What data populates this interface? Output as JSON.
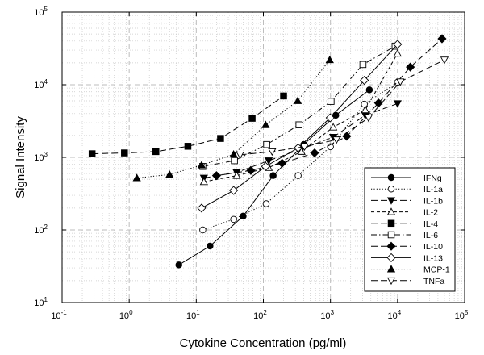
{
  "chart_data": {
    "type": "line",
    "xscale": "log",
    "yscale": "log",
    "xlim": [
      0.1,
      100000
    ],
    "ylim": [
      10,
      100000
    ],
    "xlabel": "Cytokine Concentration (pg/ml)",
    "ylabel": "Signal Intensity",
    "grid": "major dashed, minor dotted",
    "legend_position": "bottom-right",
    "xticks": [
      {
        "value": 0.1,
        "base": "10",
        "exp": "-1"
      },
      {
        "value": 1,
        "base": "10",
        "exp": "0"
      },
      {
        "value": 10,
        "base": "10",
        "exp": "1"
      },
      {
        "value": 100,
        "base": "10",
        "exp": "2"
      },
      {
        "value": 1000,
        "base": "10",
        "exp": "3"
      },
      {
        "value": 10000,
        "base": "10",
        "exp": "4"
      },
      {
        "value": 100000,
        "base": "10",
        "exp": "5"
      }
    ],
    "yticks": [
      {
        "value": 10,
        "base": "10",
        "exp": "1"
      },
      {
        "value": 100,
        "base": "10",
        "exp": "2"
      },
      {
        "value": 1000,
        "base": "10",
        "exp": "3"
      },
      {
        "value": 10000,
        "base": "10",
        "exp": "4"
      },
      {
        "value": 100000,
        "base": "10",
        "exp": "5"
      }
    ],
    "series": [
      {
        "name": "IFNg",
        "marker": "circle-filled",
        "dash": "solid",
        "x": [
          5.5,
          16,
          50,
          140,
          400,
          1200,
          3800
        ],
        "y": [
          33,
          60,
          155,
          560,
          1500,
          3800,
          8500
        ]
      },
      {
        "name": "IL-1a",
        "marker": "circle-open",
        "dash": "dotted",
        "x": [
          12.5,
          36,
          110,
          330,
          1000,
          3200,
          10000
        ],
        "y": [
          100,
          140,
          230,
          560,
          1400,
          5400,
          10800
        ]
      },
      {
        "name": "IL-1b",
        "marker": "tri-down-filled",
        "dash": "longdash",
        "x": [
          13,
          40,
          120,
          370,
          1100,
          3300,
          10000
        ],
        "y": [
          520,
          620,
          900,
          1300,
          1900,
          3800,
          5500
        ]
      },
      {
        "name": "IL-2",
        "marker": "tri-up-open",
        "dash": "dashed",
        "x": [
          13,
          40,
          120,
          370,
          1100,
          3300,
          10000
        ],
        "y": [
          460,
          560,
          720,
          1200,
          2600,
          4500,
          27000
        ]
      },
      {
        "name": "IL-4",
        "marker": "square-filled",
        "dash": "longdash",
        "x": [
          0.28,
          0.85,
          2.5,
          7.5,
          23,
          68,
          200
        ],
        "y": [
          1120,
          1150,
          1200,
          1420,
          1820,
          3450,
          7000
        ]
      },
      {
        "name": "IL-6",
        "marker": "square-open",
        "dash": "dashdot",
        "x": [
          12.5,
          37,
          112,
          340,
          1020,
          3050,
          9200
        ],
        "y": [
          750,
          900,
          1500,
          2800,
          5900,
          19000,
          34000
        ]
      },
      {
        "name": "IL-10",
        "marker": "diamond-filled",
        "dash": "longdash",
        "x": [
          20,
          65,
          190,
          580,
          1750,
          5200,
          15500,
          46000
        ],
        "y": [
          560,
          660,
          830,
          1150,
          1950,
          5600,
          17500,
          43000
        ]
      },
      {
        "name": "IL-13",
        "marker": "diamond-open",
        "dash": "solid",
        "x": [
          12,
          36,
          108,
          330,
          990,
          3200,
          10000
        ],
        "y": [
          200,
          350,
          750,
          1350,
          3500,
          11500,
          36000
        ]
      },
      {
        "name": "MCP-1",
        "marker": "tri-up-filled",
        "dash": "dotted",
        "x": [
          1.3,
          4.0,
          12,
          36,
          108,
          325,
          975
        ],
        "y": [
          520,
          580,
          780,
          1100,
          2800,
          6000,
          22000
        ]
      },
      {
        "name": "TNFa",
        "marker": "tri-down-open",
        "dash": "longdash",
        "x": [
          45,
          135,
          410,
          1230,
          3700,
          11000,
          50000
        ],
        "y": [
          1080,
          1200,
          1400,
          1750,
          3500,
          11000,
          22000
        ]
      }
    ]
  }
}
